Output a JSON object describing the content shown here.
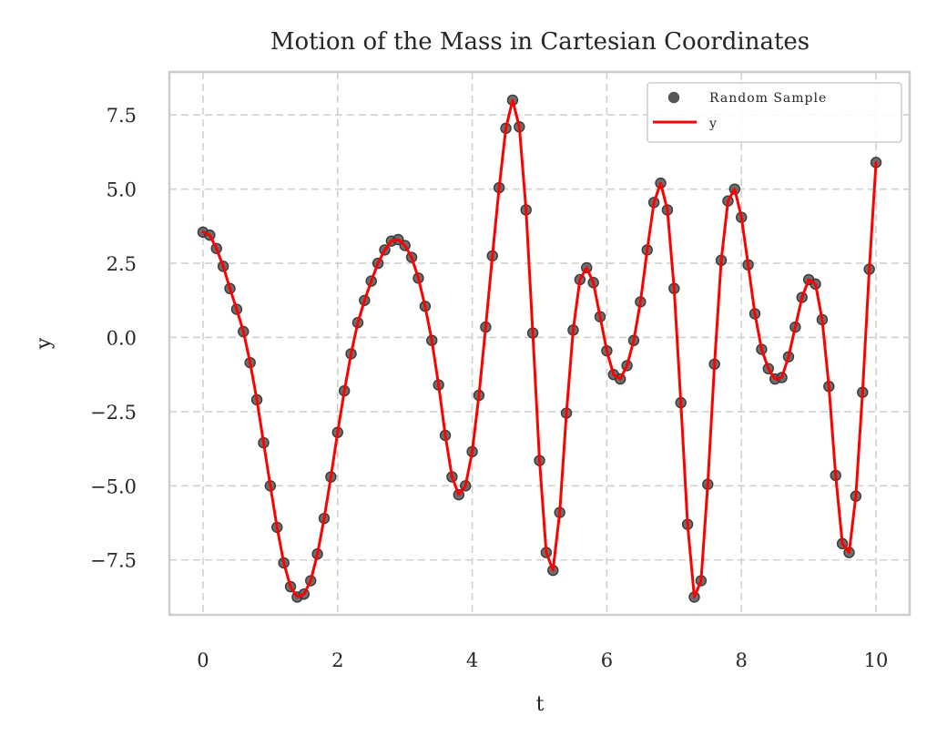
{
  "chart_data": {
    "type": "line",
    "title": "Motion of the Mass in Cartesian Coordinates",
    "xlabel": "t",
    "ylabel": "y",
    "xlim": [
      -0.5,
      10.5
    ],
    "ylim": [
      -9.35,
      8.95
    ],
    "xticks": [
      0,
      2,
      4,
      6,
      8,
      10
    ],
    "xtick_labels": [
      "0",
      "2",
      "4",
      "6",
      "8",
      "10"
    ],
    "yticks": [
      -7.5,
      -5.0,
      -2.5,
      0.0,
      2.5,
      5.0,
      7.5
    ],
    "ytick_labels": [
      "−7.5",
      "−5.0",
      "−2.5",
      "0.0",
      "2.5",
      "5.0",
      "7.5"
    ],
    "grid": true,
    "legend_position": "top-right",
    "series": [
      {
        "name": "Random Sample",
        "kind": "scatter",
        "color": "#555555",
        "x": [
          0.0,
          0.1,
          0.2,
          0.3,
          0.4,
          0.5,
          0.6,
          0.7,
          0.8,
          0.9,
          1.0,
          1.1,
          1.2,
          1.3,
          1.4,
          1.5,
          1.6,
          1.7,
          1.8,
          1.9,
          2.0,
          2.1,
          2.2,
          2.3,
          2.4,
          2.5,
          2.6,
          2.7,
          2.8,
          2.9,
          3.0,
          3.1,
          3.2,
          3.3,
          3.4,
          3.5,
          3.6,
          3.7,
          3.8,
          3.9,
          4.0,
          4.1,
          4.2,
          4.3,
          4.4,
          4.5,
          4.6,
          4.7,
          4.8,
          4.9,
          5.0,
          5.1,
          5.2,
          5.3,
          5.4,
          5.5,
          5.6,
          5.7,
          5.8,
          5.9,
          6.0,
          6.1,
          6.2,
          6.3,
          6.4,
          6.5,
          6.6,
          6.7,
          6.8,
          6.9,
          7.0,
          7.1,
          7.2,
          7.3,
          7.4,
          7.5,
          7.6,
          7.7,
          7.8,
          7.9,
          8.0,
          8.1,
          8.2,
          8.3,
          8.4,
          8.5,
          8.6,
          8.7,
          8.8,
          8.9,
          9.0,
          9.1,
          9.2,
          9.3,
          9.4,
          9.5,
          9.6,
          9.7,
          9.8,
          9.9,
          10.0
        ],
        "y": [
          3.55,
          3.45,
          3.0,
          2.4,
          1.65,
          0.95,
          0.2,
          -0.85,
          -2.1,
          -3.55,
          -5.0,
          -6.4,
          -7.6,
          -8.4,
          -8.75,
          -8.65,
          -8.2,
          -7.3,
          -6.1,
          -4.7,
          -3.2,
          -1.8,
          -0.55,
          0.5,
          1.25,
          1.9,
          2.5,
          2.95,
          3.25,
          3.3,
          3.1,
          2.7,
          2.0,
          1.05,
          -0.1,
          -1.6,
          -3.3,
          -4.7,
          -5.3,
          -5.0,
          -3.85,
          -1.95,
          0.35,
          2.75,
          5.05,
          7.05,
          8.0,
          7.1,
          4.3,
          0.15,
          -4.15,
          -7.25,
          -7.85,
          -5.9,
          -2.55,
          0.25,
          1.95,
          2.35,
          1.85,
          0.7,
          -0.45,
          -1.25,
          -1.4,
          -0.95,
          -0.1,
          1.2,
          2.95,
          4.55,
          5.2,
          4.3,
          1.65,
          -2.2,
          -6.3,
          -8.75,
          -8.2,
          -4.95,
          -0.9,
          2.6,
          4.6,
          5.0,
          4.05,
          2.45,
          0.8,
          -0.4,
          -1.05,
          -1.4,
          -1.35,
          -0.65,
          0.35,
          1.35,
          1.95,
          1.8,
          0.6,
          -1.65,
          -4.65,
          -6.95,
          -7.25,
          -5.35,
          -1.85,
          2.3,
          5.9
        ]
      },
      {
        "name": "y",
        "kind": "line",
        "color": "#ff0000",
        "x": [
          0.0,
          0.1,
          0.2,
          0.3,
          0.4,
          0.5,
          0.6,
          0.7,
          0.8,
          0.9,
          1.0,
          1.1,
          1.2,
          1.3,
          1.4,
          1.5,
          1.6,
          1.7,
          1.8,
          1.9,
          2.0,
          2.1,
          2.2,
          2.3,
          2.4,
          2.5,
          2.6,
          2.7,
          2.8,
          2.9,
          3.0,
          3.1,
          3.2,
          3.3,
          3.4,
          3.5,
          3.6,
          3.7,
          3.8,
          3.9,
          4.0,
          4.1,
          4.2,
          4.3,
          4.4,
          4.5,
          4.6,
          4.7,
          4.8,
          4.9,
          5.0,
          5.1,
          5.2,
          5.3,
          5.4,
          5.5,
          5.6,
          5.7,
          5.8,
          5.9,
          6.0,
          6.1,
          6.2,
          6.3,
          6.4,
          6.5,
          6.6,
          6.7,
          6.8,
          6.9,
          7.0,
          7.1,
          7.2,
          7.3,
          7.4,
          7.5,
          7.6,
          7.7,
          7.8,
          7.9,
          8.0,
          8.1,
          8.2,
          8.3,
          8.4,
          8.5,
          8.6,
          8.7,
          8.8,
          8.9,
          9.0,
          9.1,
          9.2,
          9.3,
          9.4,
          9.5,
          9.6,
          9.7,
          9.8,
          9.9,
          10.0
        ],
        "y": [
          3.55,
          3.45,
          3.0,
          2.4,
          1.65,
          0.95,
          0.2,
          -0.85,
          -2.1,
          -3.55,
          -5.0,
          -6.4,
          -7.6,
          -8.4,
          -8.75,
          -8.65,
          -8.2,
          -7.3,
          -6.1,
          -4.7,
          -3.2,
          -1.8,
          -0.55,
          0.5,
          1.25,
          1.9,
          2.5,
          2.95,
          3.25,
          3.3,
          3.1,
          2.7,
          2.0,
          1.05,
          -0.1,
          -1.6,
          -3.3,
          -4.7,
          -5.3,
          -5.0,
          -3.85,
          -1.95,
          0.35,
          2.75,
          5.05,
          7.05,
          8.0,
          7.1,
          4.3,
          0.15,
          -4.15,
          -7.25,
          -7.85,
          -5.9,
          -2.55,
          0.25,
          1.95,
          2.35,
          1.85,
          0.7,
          -0.45,
          -1.25,
          -1.4,
          -0.95,
          -0.1,
          1.2,
          2.95,
          4.55,
          5.2,
          4.3,
          1.65,
          -2.2,
          -6.3,
          -8.75,
          -8.2,
          -4.95,
          -0.9,
          2.6,
          4.6,
          5.0,
          4.05,
          2.45,
          0.8,
          -0.4,
          -1.05,
          -1.4,
          -1.35,
          -0.65,
          0.35,
          1.35,
          1.95,
          1.8,
          0.6,
          -1.65,
          -4.65,
          -6.95,
          -7.25,
          -5.35,
          -1.85,
          2.3,
          5.9
        ]
      }
    ]
  }
}
